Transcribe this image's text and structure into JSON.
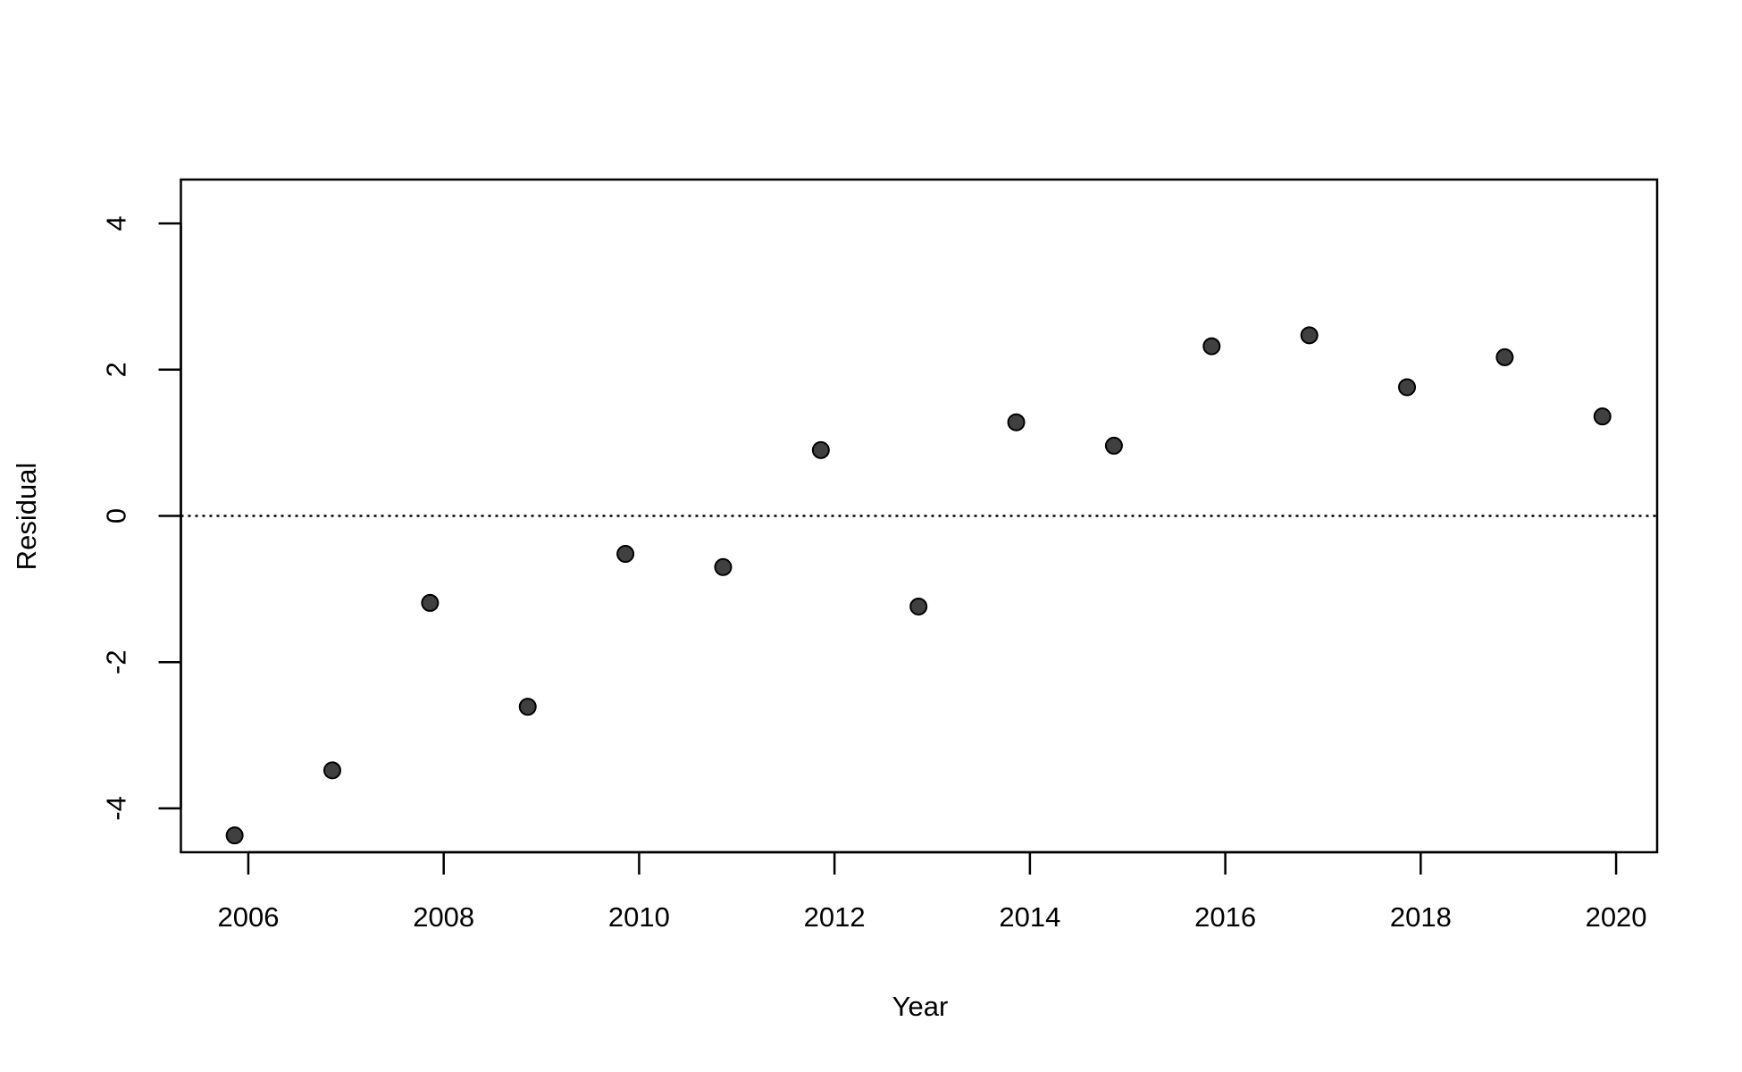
{
  "chart_data": {
    "type": "scatter",
    "x_label": "Year",
    "y_label": "Residual",
    "x": [
      2005.86,
      2006.86,
      2007.86,
      2008.86,
      2009.86,
      2010.86,
      2011.86,
      2012.86,
      2013.86,
      2014.86,
      2015.86,
      2016.86,
      2017.86,
      2018.86,
      2019.86
    ],
    "values": [
      -4.37,
      -3.48,
      -1.19,
      -2.61,
      -0.52,
      -0.7,
      0.9,
      -1.24,
      1.28,
      0.96,
      2.32,
      2.47,
      1.76,
      2.17,
      1.36
    ],
    "color": "#404040",
    "xlim": [
      2005.31,
      2020.42
    ],
    "ylim": [
      -4.6,
      4.6
    ],
    "xticks": [
      2006,
      2008,
      2010,
      2012,
      2014,
      2016,
      2018,
      2020
    ],
    "yticks": [
      -4,
      -2,
      0,
      2,
      4
    ],
    "hline": 0
  }
}
